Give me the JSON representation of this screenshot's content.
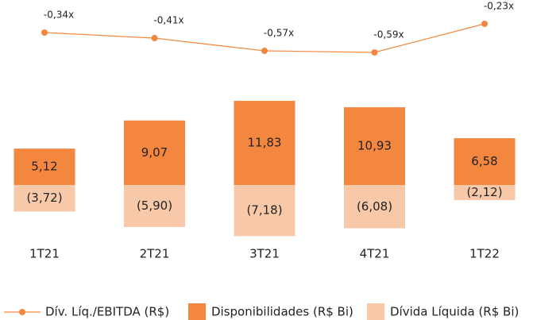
{
  "chart_data": {
    "type": "bar",
    "categories": [
      "1T21",
      "2T21",
      "3T21",
      "4T21",
      "1T22"
    ],
    "series": [
      {
        "name": "Dív. Líq./EBITDA (R$)",
        "type": "line",
        "axis": "y2",
        "color": "#f4873f",
        "values": [
          -0.34,
          -0.41,
          -0.57,
          -0.59,
          -0.23
        ],
        "value_labels": [
          "-0,34x",
          "-0,41x",
          "-0,57x",
          "-0,59x",
          "-0,23x"
        ]
      },
      {
        "name": "Disponibilidades (R$ Bi)",
        "color": "#f4873f",
        "values": [
          5.12,
          9.07,
          11.83,
          10.93,
          6.58
        ],
        "value_labels": [
          "5,12",
          "9,07",
          "11,83",
          "10,93",
          "6,58"
        ]
      },
      {
        "name": "Dívida Líquida (R$ Bi)",
        "color": "#f8c9a9",
        "values": [
          -3.72,
          -5.9,
          -7.18,
          -6.08,
          -2.12
        ],
        "value_labels": [
          "(3,72)",
          "(5,90)",
          "(7,18)",
          "(6,08)",
          "(2,12)"
        ]
      }
    ],
    "ylim": [
      -8,
      12
    ],
    "y2lim": [
      -0.7,
      -0.1
    ],
    "grid": false,
    "legend": "bottom"
  }
}
